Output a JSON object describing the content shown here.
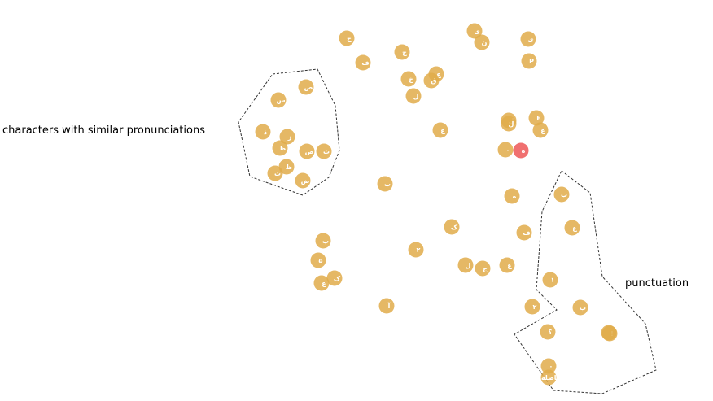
{
  "chart_data": {
    "type": "scatter",
    "title": "",
    "xlabel": "",
    "ylabel": "",
    "grid": false,
    "legend": "none",
    "colors": {
      "point": "#e0ac4a",
      "point_dark": "#c9892a",
      "highlight": "#f07070",
      "region_outline": "#333333"
    },
    "annotations": [
      {
        "id": "similar",
        "text": "characters with similar pronunciations"
      },
      {
        "id": "punct",
        "text": "punctuation"
      }
    ],
    "points": [
      {
        "x": 0.125,
        "y": 0.355,
        "label": "ص"
      },
      {
        "x": 0.08,
        "y": 0.36,
        "label": "س"
      },
      {
        "x": 0.05,
        "y": 0.33,
        "label": "ذ"
      },
      {
        "x": 0.09,
        "y": 0.335,
        "label": "ز"
      },
      {
        "x": 0.08,
        "y": 0.31,
        "label": "ظ"
      },
      {
        "x": 0.09,
        "y": 0.29,
        "label": "ظ"
      },
      {
        "x": 0.07,
        "y": 0.285,
        "label": "ث"
      },
      {
        "x": 0.115,
        "y": 0.275,
        "label": "ض"
      },
      {
        "x": 0.14,
        "y": 0.305,
        "label": "ص"
      },
      {
        "x": 0.16,
        "y": 0.3,
        "label": "ت"
      },
      {
        "x": 0.27,
        "y": 0.8,
        "label": "ح"
      },
      {
        "x": 0.34,
        "y": 0.785,
        "label": "ف"
      },
      {
        "x": 0.41,
        "y": 0.71,
        "label": "ج"
      },
      {
        "x": 0.45,
        "y": 0.69,
        "label": "خ"
      },
      {
        "x": 0.47,
        "y": 0.63,
        "label": "ل"
      },
      {
        "x": 0.475,
        "y": 0.755,
        "label": "ع"
      },
      {
        "x": 0.52,
        "y": 0.76,
        "label": "غ"
      },
      {
        "x": 0.64,
        "y": 0.82,
        "label": "ی"
      },
      {
        "x": 0.66,
        "y": 0.79,
        "label": "ن"
      },
      {
        "x": 0.835,
        "y": 0.79,
        "label": "ی"
      },
      {
        "x": 0.843,
        "y": 0.748,
        "label": "P"
      },
      {
        "x": 0.785,
        "y": 0.72,
        "label": "ل"
      },
      {
        "x": 0.59,
        "y": 0.71,
        "label": "ق"
      },
      {
        "x": 0.78,
        "y": 0.61,
        "label": "E"
      },
      {
        "x": 0.795,
        "y": 0.605,
        "label": "ع"
      },
      {
        "x": 0.72,
        "y": 0.615,
        "label": "ل"
      },
      {
        "x": 0.73,
        "y": 0.645,
        "label": "ب"
      },
      {
        "x": 0.705,
        "y": 0.555,
        "label": "ه"
      },
      {
        "x": 0.36,
        "y": 0.485,
        "label": "ب"
      },
      {
        "x": 0.445,
        "y": 0.4,
        "label": "۵"
      },
      {
        "x": 0.4,
        "y": 0.355,
        "label": "ع"
      },
      {
        "x": 0.475,
        "y": 0.33,
        "label": "ک"
      },
      {
        "x": 0.49,
        "y": 0.315,
        "label": "آ"
      },
      {
        "x": 0.515,
        "y": 0.305,
        "label": "۲"
      },
      {
        "x": 0.17,
        "y": 0.335,
        "label": "ک"
      },
      {
        "x": 0.16,
        "y": 0.31,
        "label": "ل"
      },
      {
        "x": 0.18,
        "y": 0.285,
        "label": "ج"
      },
      {
        "x": 0.2,
        "y": 0.29,
        "label": "ع"
      },
      {
        "x": 0.365,
        "y": 0.235,
        "label": "ف"
      },
      {
        "x": 0.74,
        "y": 0.385,
        "label": "ب"
      },
      {
        "x": 0.775,
        "y": 0.43,
        "label": "ع"
      },
      {
        "x": 0.81,
        "y": 0.26,
        "label": "۱"
      },
      {
        "x": 0.78,
        "y": 0.185,
        "label": "ب"
      },
      {
        "x": 0.755,
        "y": 0.22,
        "label": "۲"
      },
      {
        "x": 0.815,
        "y": 0.21,
        "label": "؟"
      },
      {
        "x": 0.65,
        "y": 0.235,
        "label": "!"
      },
      {
        "x": 0.715,
        "y": 0.24,
        "label": "۰"
      },
      {
        "x": 0.73,
        "y": 0.13,
        "label": "فاصله"
      },
      {
        "x": 0.735,
        "y": 0.11,
        "label": ""
      },
      {
        "x": 0.9,
        "y": 0.16,
        "label": "۰"
      },
      {
        "x": 0.69,
        "y": 0.56,
        "label": "ه",
        "highlight": true
      }
    ]
  }
}
